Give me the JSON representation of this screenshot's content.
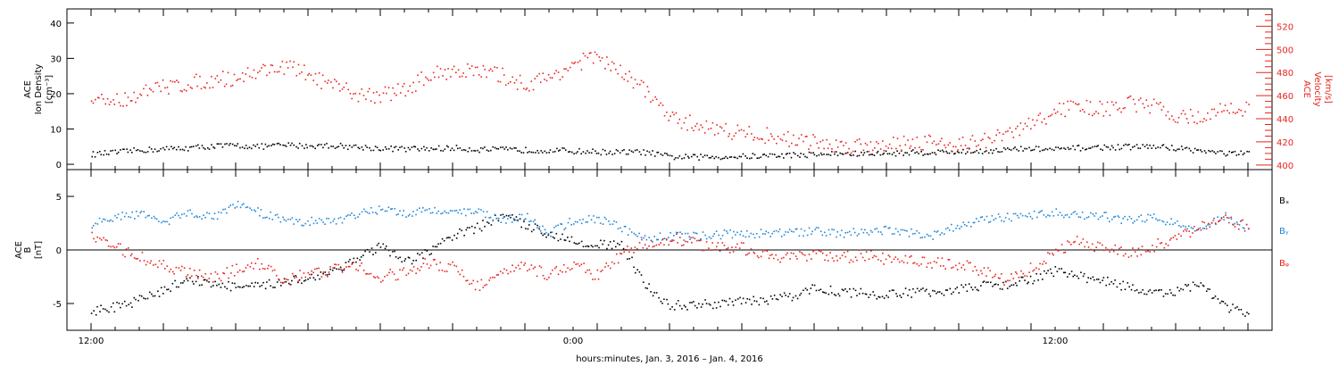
{
  "colors": {
    "black": "#000000",
    "red": "#e8231e",
    "blue": "#1f86d9"
  },
  "xlabel": "hours:minutes, Jan.  3, 2016 – Jan.  4, 2016",
  "chart_data": [
    {
      "type": "scatter",
      "panel": "plasma",
      "ylabel": [
        "ACE",
        "Ion Density",
        "[cm⁻³]"
      ],
      "y2label": [
        "ACE",
        "Velocity",
        "[km/s]"
      ],
      "ylim": [
        -1.5,
        44
      ],
      "yticks": [
        0,
        10,
        20,
        30,
        40
      ],
      "y2lim": [
        396,
        535
      ],
      "y2ticks": [
        400,
        420,
        440,
        460,
        480,
        500,
        520
      ],
      "x_ticks": [
        "12:00",
        "0:00",
        "12:00"
      ],
      "series": [
        {
          "axis": "left",
          "color": "black",
          "x": [
            0,
            1,
            2,
            3,
            4,
            5,
            6,
            7,
            8,
            9,
            10,
            11,
            12,
            13,
            14,
            15,
            16,
            17,
            18,
            19,
            20,
            21,
            22,
            23,
            24,
            25,
            26,
            27,
            28,
            29,
            30,
            31,
            32,
            33,
            34,
            35,
            36,
            37,
            38,
            39,
            40,
            41,
            42,
            43,
            44,
            45,
            46,
            47,
            48
          ],
          "y": [
            3.0,
            3.5,
            4.2,
            4.5,
            4.8,
            5.3,
            5.5,
            5.2,
            5.6,
            5.4,
            5.5,
            5.1,
            4.7,
            4.5,
            4.6,
            4.8,
            4.4,
            4.3,
            4.2,
            4.2,
            3.9,
            3.7,
            3.6,
            3.6,
            2.3,
            2.2,
            2.3,
            2.4,
            2.6,
            2.8,
            3.0,
            3.2,
            3.1,
            3.3,
            3.5,
            3.6,
            3.7,
            4.0,
            4.3,
            4.6,
            4.3,
            4.8,
            5.0,
            5.1,
            5.2,
            4.8,
            4.0,
            3.3,
            3.1
          ]
        },
        {
          "axis": "right",
          "color": "red",
          "x": [
            0,
            1,
            2,
            3,
            4,
            5,
            6,
            7,
            8,
            9,
            10,
            11,
            12,
            13,
            14,
            15,
            16,
            17,
            18,
            19,
            20,
            21,
            22,
            23,
            24,
            25,
            26,
            27,
            28,
            29,
            30,
            31,
            32,
            33,
            34,
            35,
            36,
            37,
            38,
            39,
            40,
            41,
            42,
            43,
            44,
            45,
            46,
            47,
            48
          ],
          "y": [
            457,
            456,
            462,
            468,
            471,
            474,
            476,
            482,
            486,
            479,
            468,
            462,
            461,
            466,
            478,
            483,
            481,
            478,
            470,
            476,
            488,
            494,
            479,
            466,
            440,
            436,
            432,
            428,
            426,
            423,
            420,
            417,
            418,
            419,
            421,
            420,
            419,
            421,
            427,
            436,
            447,
            452,
            448,
            454,
            451,
            444,
            441,
            449,
            449
          ]
        }
      ]
    },
    {
      "type": "scatter",
      "panel": "magnetic-field",
      "ylabel": [
        "ACE",
        "B",
        "[nT]"
      ],
      "ylim": [
        -7.5,
        7.5
      ],
      "yticks": [
        -5,
        0,
        5
      ],
      "x_ticks": [
        "12:00",
        "0:00",
        "12:00"
      ],
      "legend": [
        {
          "label": "Bₓ",
          "color": "black"
        },
        {
          "label": "Bᵧ",
          "color": "blue"
        },
        {
          "label": "Bᵩ",
          "color": "red"
        }
      ],
      "series": [
        {
          "name": "Bₓ",
          "color": "black",
          "x": [
            0,
            1,
            2,
            3,
            4,
            5,
            6,
            7,
            8,
            9,
            10,
            11,
            12,
            13,
            14,
            15,
            16,
            17,
            18,
            19,
            20,
            21,
            22,
            23,
            24,
            25,
            26,
            27,
            28,
            29,
            30,
            31,
            32,
            33,
            34,
            35,
            36,
            37,
            38,
            39,
            40,
            41,
            42,
            43,
            44,
            45,
            46,
            47,
            48
          ],
          "y": [
            -5.6,
            -5.3,
            -4.6,
            -3.7,
            -2.6,
            -3.1,
            -3.4,
            -3.4,
            -2.8,
            -2.6,
            -1.9,
            -0.8,
            0.4,
            -1.2,
            -0.1,
            1.4,
            2.1,
            3.3,
            2.4,
            1.6,
            0.9,
            0.6,
            0.4,
            -3.3,
            -5.1,
            -5.1,
            -4.9,
            -4.8,
            -4.6,
            -4.3,
            -3.5,
            -3.8,
            -4.0,
            -4.2,
            -3.9,
            -3.8,
            -3.6,
            -3.3,
            -3.2,
            -2.7,
            -1.9,
            -2.4,
            -2.8,
            -3.4,
            -4.0,
            -3.9,
            -3.1,
            -5.1,
            -6.1
          ]
        },
        {
          "name": "Bᵧ",
          "color": "blue",
          "x": [
            0,
            1,
            2,
            3,
            4,
            5,
            6,
            7,
            8,
            9,
            10,
            11,
            12,
            13,
            14,
            15,
            16,
            17,
            18,
            19,
            20,
            21,
            22,
            23,
            24,
            25,
            26,
            27,
            28,
            29,
            30,
            31,
            32,
            33,
            34,
            35,
            36,
            37,
            38,
            39,
            40,
            41,
            42,
            43,
            44,
            45,
            46,
            47,
            48
          ],
          "y": [
            2.4,
            3.1,
            3.4,
            2.6,
            3.6,
            3.1,
            4.3,
            3.5,
            2.9,
            2.7,
            2.8,
            3.3,
            3.9,
            3.5,
            3.9,
            3.5,
            3.6,
            2.9,
            3.2,
            1.6,
            2.8,
            3.0,
            2.1,
            1.1,
            1.4,
            1.3,
            1.5,
            1.6,
            1.6,
            1.7,
            1.8,
            1.6,
            1.8,
            1.9,
            1.7,
            1.4,
            2.4,
            2.9,
            3.1,
            3.3,
            3.5,
            3.3,
            3.2,
            2.8,
            3.1,
            2.5,
            2.1,
            3.2,
            2.1
          ]
        },
        {
          "name": "Bᵩ",
          "color": "red",
          "x": [
            0,
            1,
            2,
            3,
            4,
            5,
            6,
            7,
            8,
            9,
            10,
            11,
            12,
            13,
            14,
            15,
            16,
            17,
            18,
            19,
            20,
            21,
            22,
            23,
            24,
            25,
            26,
            27,
            28,
            29,
            30,
            31,
            32,
            33,
            34,
            35,
            36,
            37,
            38,
            39,
            40,
            41,
            42,
            43,
            44,
            45,
            46,
            47,
            48
          ],
          "y": [
            1.2,
            0.3,
            -0.6,
            -1.5,
            -2.1,
            -2.6,
            -1.8,
            -1.2,
            -2.9,
            -2.1,
            -1.8,
            -1.5,
            -2.4,
            -2.1,
            -1.1,
            -1.6,
            -3.3,
            -2.2,
            -1.4,
            -2.4,
            -1.1,
            -2.4,
            -0.3,
            0.7,
            1.1,
            0.7,
            0.3,
            0.2,
            -0.3,
            -0.7,
            -0.5,
            -0.7,
            -0.4,
            -0.8,
            -0.9,
            -1.2,
            -1.3,
            -1.9,
            -2.9,
            -1.6,
            -0.1,
            0.9,
            0.2,
            -0.2,
            0.4,
            1.2,
            2.1,
            2.8,
            2.3
          ]
        }
      ]
    }
  ]
}
